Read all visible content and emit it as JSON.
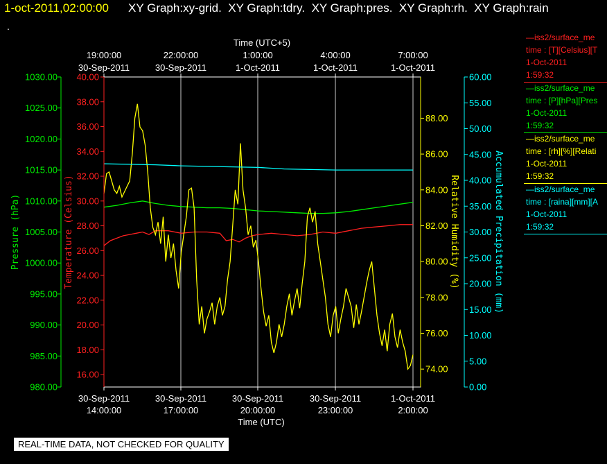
{
  "header": {
    "timestamp": "1-oct-2011,02:00:00",
    "tabs": [
      "XY Graph:xy-grid.",
      "XY Graph:tdry.",
      "XY Graph:pres.",
      "XY Graph:rh.",
      "XY Graph:rain"
    ],
    "dot": "."
  },
  "footer": {
    "notice": "REAL-TIME DATA, NOT CHECKED FOR QUALITY"
  },
  "legend": [
    {
      "line1": "—iss2/surface_me",
      "line2": "time : [T][Celsius][T",
      "line3": "1-Oct-2011",
      "line4": "1:59:32",
      "color": "#ff2020"
    },
    {
      "line1": "—iss2/surface_me",
      "line2": "time : [P][hPa][Pres",
      "line3": "1-Oct-2011",
      "line4": "1:59:32",
      "color": "#00ee00"
    },
    {
      "line1": "—iss2/surface_me",
      "line2": "time : [rh][%][Relati",
      "line3": "1-Oct-2011",
      "line4": "1:59:32",
      "color": "#ffff00"
    },
    {
      "line1": "—iss2/surface_me",
      "line2": "time : [raina][mm][A",
      "line3": "1-Oct-2011",
      "line4": "1:59:32",
      "color": "#00ffff"
    }
  ],
  "chart_data": {
    "type": "line",
    "title": "",
    "grid": true,
    "top_axis": {
      "label": "Time (UTC+5)",
      "ticks": [
        {
          "line1": "19:00:00",
          "line2": "30-Sep-2011"
        },
        {
          "line1": "22:00:00",
          "line2": "30-Sep-2011"
        },
        {
          "line1": "1:00:00",
          "line2": "1-Oct-2011"
        },
        {
          "line1": "4:00:00",
          "line2": "1-Oct-2011"
        },
        {
          "line1": "7:00:00",
          "line2": "1-Oct-2011"
        }
      ]
    },
    "bottom_axis": {
      "label": "Time (UTC)",
      "range": [
        "2011-09-30 14:00:00",
        "2011-10-01 02:00:00"
      ],
      "ticks": [
        {
          "line1": "30-Sep-2011",
          "line2": "14:00:00"
        },
        {
          "line1": "30-Sep-2011",
          "line2": "17:00:00"
        },
        {
          "line1": "30-Sep-2011",
          "line2": "20:00:00"
        },
        {
          "line1": "30-Sep-2011",
          "line2": "23:00:00"
        },
        {
          "line1": "1-Oct-2011",
          "line2": "2:00:00"
        }
      ]
    },
    "y_axes": [
      {
        "id": "pressure",
        "label": "Pressure (hPa)",
        "color": "#00ee00",
        "range": [
          980,
          1030
        ],
        "ticks": [
          "980.00",
          "985.00",
          "990.00",
          "995.00",
          "1000.00",
          "1005.00",
          "1010.00",
          "1015.00",
          "1020.00",
          "1025.00",
          "1030.00"
        ]
      },
      {
        "id": "temperature",
        "label": "Temperature (Celsius)",
        "color": "#ff2020",
        "range": [
          15,
          40
        ],
        "ticks": [
          "16.00",
          "18.00",
          "20.00",
          "22.00",
          "24.00",
          "26.00",
          "28.00",
          "30.00",
          "32.00",
          "34.00",
          "36.00",
          "38.00",
          "40.00"
        ]
      },
      {
        "id": "rh",
        "label": "Relative Humidity (%)",
        "color": "#ffff00",
        "range": [
          73,
          90.3
        ],
        "ticks": [
          "74.00",
          "76.00",
          "78.00",
          "80.00",
          "82.00",
          "84.00",
          "86.00",
          "88.00"
        ]
      },
      {
        "id": "precip",
        "label": "Accumulated Precipitation (mm)",
        "color": "#00ffff",
        "range": [
          0,
          60
        ],
        "ticks": [
          "0.00",
          "5.00",
          "10.00",
          "15.00",
          "20.00",
          "25.00",
          "30.00",
          "35.00",
          "40.00",
          "45.00",
          "50.00",
          "55.00",
          "60.00"
        ]
      }
    ],
    "series": [
      {
        "name": "Pressure",
        "axis": "pressure",
        "color": "#00ee00",
        "x": [
          0,
          0.5,
          1,
          1.5,
          2,
          2.5,
          3,
          3.5,
          4,
          4.5,
          5,
          5.5,
          6,
          6.5,
          7,
          7.5,
          8,
          8.5,
          9,
          9.5,
          10,
          10.5,
          11,
          11.5,
          12
        ],
        "y": [
          1009.0,
          1009.3,
          1009.7,
          1010.0,
          1009.6,
          1009.3,
          1009.1,
          1009.0,
          1008.9,
          1008.9,
          1008.8,
          1008.6,
          1008.4,
          1008.3,
          1008.2,
          1008.1,
          1008.0,
          1008.0,
          1008.1,
          1008.3,
          1008.6,
          1008.9,
          1009.2,
          1009.5,
          1009.8
        ]
      },
      {
        "name": "Temperature",
        "axis": "temperature",
        "color": "#ff2020",
        "x": [
          0,
          0.25,
          0.5,
          0.75,
          1,
          1.25,
          1.5,
          1.75,
          2,
          2.5,
          3,
          3.5,
          4,
          4.5,
          4.75,
          5,
          5.25,
          5.5,
          5.75,
          6,
          6.5,
          7,
          7.5,
          8,
          8.5,
          9,
          9.5,
          10,
          10.5,
          11,
          11.5,
          12
        ],
        "y": [
          26.4,
          26.8,
          27.0,
          27.2,
          27.3,
          27.4,
          27.5,
          27.3,
          27.6,
          27.6,
          27.4,
          27.5,
          27.5,
          27.4,
          26.8,
          26.9,
          26.7,
          27.0,
          27.2,
          27.3,
          27.4,
          27.3,
          27.2,
          27.3,
          27.5,
          27.4,
          27.6,
          27.8,
          27.9,
          28.0,
          28.1,
          28.1
        ]
      },
      {
        "name": "Relative Humidity",
        "axis": "rh",
        "color": "#ffff00",
        "x": [
          0,
          0.1,
          0.2,
          0.3,
          0.4,
          0.5,
          0.6,
          0.7,
          0.8,
          0.9,
          1,
          1.1,
          1.2,
          1.3,
          1.4,
          1.5,
          1.6,
          1.7,
          1.8,
          1.9,
          2,
          2.1,
          2.2,
          2.3,
          2.4,
          2.5,
          2.6,
          2.7,
          2.8,
          2.9,
          3,
          3.1,
          3.2,
          3.3,
          3.4,
          3.5,
          3.6,
          3.7,
          3.8,
          3.9,
          4,
          4.1,
          4.2,
          4.3,
          4.4,
          4.5,
          4.6,
          4.7,
          4.8,
          4.9,
          5,
          5.1,
          5.2,
          5.3,
          5.4,
          5.5,
          5.6,
          5.7,
          5.8,
          5.9,
          6,
          6.1,
          6.2,
          6.3,
          6.4,
          6.5,
          6.6,
          6.7,
          6.8,
          6.9,
          7,
          7.1,
          7.2,
          7.3,
          7.4,
          7.5,
          7.6,
          7.7,
          7.8,
          7.9,
          8,
          8.1,
          8.2,
          8.3,
          8.4,
          8.5,
          8.6,
          8.7,
          8.8,
          8.9,
          9,
          9.1,
          9.2,
          9.3,
          9.4,
          9.5,
          9.6,
          9.7,
          9.8,
          9.9,
          10,
          10.1,
          10.2,
          10.3,
          10.4,
          10.5,
          10.6,
          10.7,
          10.8,
          10.9,
          11,
          11.1,
          11.2,
          11.3,
          11.4,
          11.5,
          11.6,
          11.7,
          11.8,
          11.9,
          12
        ],
        "y": [
          83.8,
          84.9,
          85.0,
          84.5,
          84.0,
          83.8,
          84.2,
          83.6,
          83.9,
          84.2,
          84.5,
          86.0,
          88.0,
          88.8,
          87.5,
          87.3,
          86.5,
          85.0,
          83.0,
          81.9,
          81.5,
          82.2,
          81.0,
          82.5,
          80.0,
          81.5,
          80.2,
          81.0,
          79.5,
          78.5,
          80.5,
          81.5,
          82.5,
          84.0,
          84.1,
          83.0,
          79.0,
          76.5,
          77.5,
          76.0,
          76.8,
          77.2,
          77.7,
          76.5,
          77.5,
          78.0,
          77.0,
          77.5,
          79.0,
          80.0,
          82.0,
          84.0,
          83.2,
          86.6,
          84.0,
          83.0,
          81.5,
          82.0,
          80.8,
          81.2,
          80.0,
          78.5,
          77.2,
          76.4,
          77.0,
          75.5,
          74.9,
          75.5,
          76.5,
          75.8,
          76.5,
          77.5,
          78.2,
          77.0,
          77.8,
          78.5,
          77.4,
          78.8,
          80.0,
          82.5,
          83.0,
          82.2,
          82.8,
          81.0,
          80.0,
          79.0,
          78.0,
          76.5,
          75.8,
          77.0,
          77.5,
          76.0,
          76.8,
          77.5,
          78.5,
          78.0,
          77.5,
          76.3,
          77.6,
          76.5,
          77.2,
          78.0,
          78.8,
          79.5,
          80.0,
          78.5,
          77.0,
          76.0,
          75.3,
          76.2,
          75.0,
          76.5,
          77.1,
          75.8,
          75.2,
          76.2,
          75.5,
          75.0,
          74.0,
          74.2,
          74.8
        ]
      },
      {
        "name": "Accumulated Precipitation",
        "axis": "precip",
        "color": "#00ffff",
        "x": [
          0,
          1,
          2,
          3,
          4,
          5,
          6,
          7,
          8,
          9,
          10,
          11,
          12
        ],
        "y": [
          43.2,
          43.1,
          43.0,
          42.8,
          42.7,
          42.6,
          42.5,
          42.2,
          42.1,
          42.0,
          42.0,
          42.0,
          42.0
        ]
      }
    ]
  }
}
